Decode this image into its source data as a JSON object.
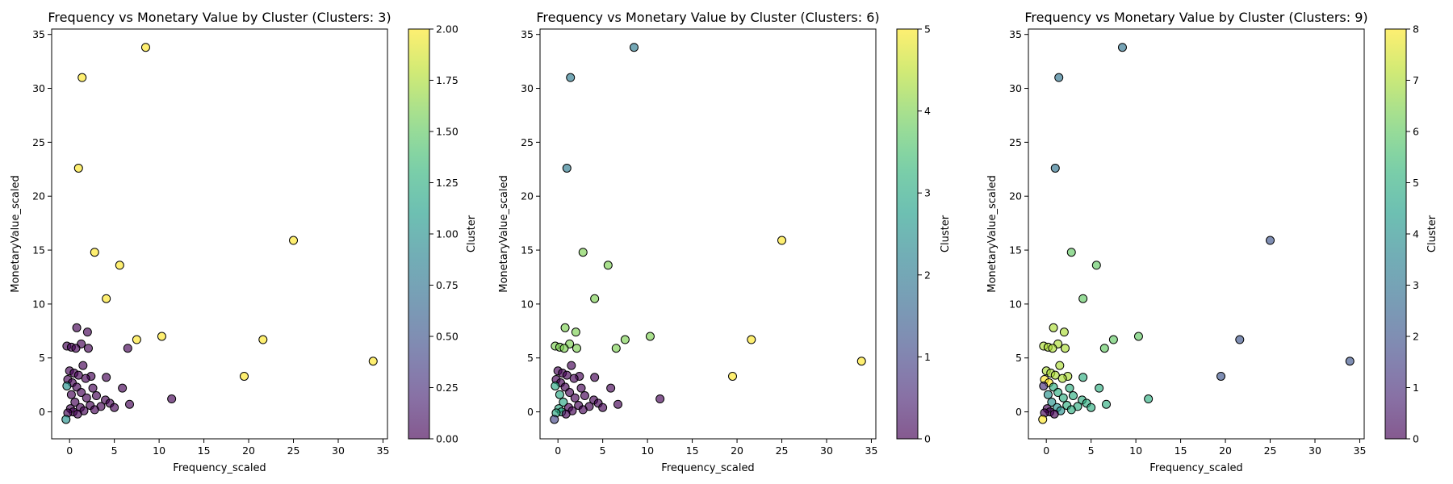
{
  "chart_data": [
    {
      "type": "scatter",
      "title": "Frequency vs Monetary Value by Cluster (Clusters: 3)",
      "xlabel": "Frequency_scaled",
      "ylabel": "MonetaryValue_scaled",
      "xlim": [
        -2.0,
        35.5
      ],
      "ylim": [
        -2.5,
        35.5
      ],
      "xticks": [
        0,
        5,
        10,
        15,
        20,
        25,
        30,
        35
      ],
      "yticks": [
        0,
        5,
        10,
        15,
        20,
        25,
        30,
        35
      ],
      "grid": false,
      "colorbar": {
        "label": "Cluster",
        "min": 0,
        "max": 2,
        "colormap": "viridis",
        "tick_values": [
          0,
          0.25,
          0.5,
          0.75,
          1,
          1.25,
          1.5,
          1.75,
          2
        ],
        "tick_labels": [
          "0.00",
          "0.25",
          "0.50",
          "0.75",
          "1.00",
          "1.25",
          "1.50",
          "1.75",
          "2.00"
        ]
      },
      "points": [
        {
          "x": 8.5,
          "y": 33.8,
          "c": 2
        },
        {
          "x": 1.4,
          "y": 31.0,
          "c": 2
        },
        {
          "x": 1.0,
          "y": 22.6,
          "c": 2
        },
        {
          "x": 25.0,
          "y": 15.9,
          "c": 2
        },
        {
          "x": 2.8,
          "y": 14.8,
          "c": 2
        },
        {
          "x": 5.6,
          "y": 13.6,
          "c": 2
        },
        {
          "x": 4.1,
          "y": 10.5,
          "c": 2
        },
        {
          "x": 10.3,
          "y": 7.0,
          "c": 2
        },
        {
          "x": 7.5,
          "y": 6.7,
          "c": 2
        },
        {
          "x": 21.6,
          "y": 6.7,
          "c": 2
        },
        {
          "x": 33.9,
          "y": 4.7,
          "c": 2
        },
        {
          "x": 19.5,
          "y": 3.3,
          "c": 2
        },
        {
          "x": 0.8,
          "y": 7.8,
          "c": 0
        },
        {
          "x": 2.0,
          "y": 7.4,
          "c": 0
        },
        {
          "x": 1.3,
          "y": 6.3,
          "c": 0
        },
        {
          "x": -0.3,
          "y": 6.1,
          "c": 0
        },
        {
          "x": 0.2,
          "y": 6.0,
          "c": 0
        },
        {
          "x": 0.7,
          "y": 5.9,
          "c": 0
        },
        {
          "x": 2.1,
          "y": 5.9,
          "c": 0
        },
        {
          "x": 6.5,
          "y": 5.9,
          "c": 0
        },
        {
          "x": 1.5,
          "y": 4.3,
          "c": 0
        },
        {
          "x": 0.0,
          "y": 3.8,
          "c": 0
        },
        {
          "x": 0.5,
          "y": 3.6,
          "c": 0
        },
        {
          "x": 1.0,
          "y": 3.4,
          "c": 0
        },
        {
          "x": 2.4,
          "y": 3.3,
          "c": 0
        },
        {
          "x": 1.8,
          "y": 3.1,
          "c": 0
        },
        {
          "x": 4.1,
          "y": 3.2,
          "c": 0
        },
        {
          "x": -0.2,
          "y": 3.0,
          "c": 0
        },
        {
          "x": 0.3,
          "y": 2.7,
          "c": 0
        },
        {
          "x": -0.3,
          "y": 2.4,
          "c": 1
        },
        {
          "x": 0.8,
          "y": 2.3,
          "c": 0
        },
        {
          "x": 2.6,
          "y": 2.2,
          "c": 0
        },
        {
          "x": 5.9,
          "y": 2.2,
          "c": 0
        },
        {
          "x": 1.3,
          "y": 1.8,
          "c": 0
        },
        {
          "x": 0.2,
          "y": 1.6,
          "c": 0
        },
        {
          "x": 3.0,
          "y": 1.5,
          "c": 0
        },
        {
          "x": 1.9,
          "y": 1.3,
          "c": 0
        },
        {
          "x": 11.4,
          "y": 1.2,
          "c": 0
        },
        {
          "x": 4.0,
          "y": 1.1,
          "c": 0
        },
        {
          "x": 4.5,
          "y": 0.8,
          "c": 0
        },
        {
          "x": 6.7,
          "y": 0.7,
          "c": 0
        },
        {
          "x": 0.6,
          "y": 0.9,
          "c": 0
        },
        {
          "x": 2.3,
          "y": 0.6,
          "c": 0
        },
        {
          "x": 3.5,
          "y": 0.5,
          "c": 0
        },
        {
          "x": 5.0,
          "y": 0.4,
          "c": 0
        },
        {
          "x": 1.2,
          "y": 0.4,
          "c": 0
        },
        {
          "x": 0.1,
          "y": 0.3,
          "c": 0
        },
        {
          "x": 2.8,
          "y": 0.2,
          "c": 0
        },
        {
          "x": 1.6,
          "y": 0.1,
          "c": 0
        },
        {
          "x": 0.4,
          "y": 0.0,
          "c": 0
        },
        {
          "x": -0.2,
          "y": -0.1,
          "c": 0
        },
        {
          "x": 0.9,
          "y": -0.2,
          "c": 0
        },
        {
          "x": -0.4,
          "y": -0.7,
          "c": 1
        }
      ]
    },
    {
      "type": "scatter",
      "title": "Frequency vs Monetary Value by Cluster (Clusters: 6)",
      "xlabel": "Frequency_scaled",
      "ylabel": "MonetaryValue_scaled",
      "xlim": [
        -2.0,
        35.5
      ],
      "ylim": [
        -2.5,
        35.5
      ],
      "xticks": [
        0,
        5,
        10,
        15,
        20,
        25,
        30,
        35
      ],
      "yticks": [
        0,
        5,
        10,
        15,
        20,
        25,
        30,
        35
      ],
      "grid": false,
      "colorbar": {
        "label": "Cluster",
        "min": 0,
        "max": 5,
        "colormap": "viridis",
        "tick_values": [
          0,
          1,
          2,
          3,
          4,
          5
        ],
        "tick_labels": [
          "0",
          "1",
          "2",
          "3",
          "4",
          "5"
        ]
      },
      "points": [
        {
          "x": 8.5,
          "y": 33.8,
          "c": 2
        },
        {
          "x": 1.4,
          "y": 31.0,
          "c": 2
        },
        {
          "x": 1.0,
          "y": 22.6,
          "c": 2
        },
        {
          "x": 25.0,
          "y": 15.9,
          "c": 5
        },
        {
          "x": 2.8,
          "y": 14.8,
          "c": 4
        },
        {
          "x": 5.6,
          "y": 13.6,
          "c": 4
        },
        {
          "x": 4.1,
          "y": 10.5,
          "c": 4
        },
        {
          "x": 10.3,
          "y": 7.0,
          "c": 4
        },
        {
          "x": 7.5,
          "y": 6.7,
          "c": 4
        },
        {
          "x": 21.6,
          "y": 6.7,
          "c": 5
        },
        {
          "x": 33.9,
          "y": 4.7,
          "c": 5
        },
        {
          "x": 19.5,
          "y": 3.3,
          "c": 5
        },
        {
          "x": 0.8,
          "y": 7.8,
          "c": 4
        },
        {
          "x": 2.0,
          "y": 7.4,
          "c": 4
        },
        {
          "x": 1.3,
          "y": 6.3,
          "c": 4
        },
        {
          "x": -0.3,
          "y": 6.1,
          "c": 4
        },
        {
          "x": 0.2,
          "y": 6.0,
          "c": 4
        },
        {
          "x": 0.7,
          "y": 5.9,
          "c": 4
        },
        {
          "x": 2.1,
          "y": 5.9,
          "c": 4
        },
        {
          "x": 6.5,
          "y": 5.9,
          "c": 4
        },
        {
          "x": 1.5,
          "y": 4.3,
          "c": 0
        },
        {
          "x": 0.0,
          "y": 3.8,
          "c": 0
        },
        {
          "x": 0.5,
          "y": 3.6,
          "c": 0
        },
        {
          "x": 1.0,
          "y": 3.4,
          "c": 0
        },
        {
          "x": 2.4,
          "y": 3.3,
          "c": 0
        },
        {
          "x": 1.8,
          "y": 3.1,
          "c": 0
        },
        {
          "x": 4.1,
          "y": 3.2,
          "c": 0
        },
        {
          "x": -0.2,
          "y": 3.0,
          "c": 0
        },
        {
          "x": 0.3,
          "y": 2.7,
          "c": 0
        },
        {
          "x": -0.3,
          "y": 2.4,
          "c": 3
        },
        {
          "x": 0.8,
          "y": 2.3,
          "c": 0
        },
        {
          "x": 2.6,
          "y": 2.2,
          "c": 0
        },
        {
          "x": 5.9,
          "y": 2.2,
          "c": 0
        },
        {
          "x": 1.3,
          "y": 1.8,
          "c": 0
        },
        {
          "x": 0.2,
          "y": 1.6,
          "c": 3
        },
        {
          "x": 3.0,
          "y": 1.5,
          "c": 0
        },
        {
          "x": 1.9,
          "y": 1.3,
          "c": 0
        },
        {
          "x": 11.4,
          "y": 1.2,
          "c": 0
        },
        {
          "x": 4.0,
          "y": 1.1,
          "c": 0
        },
        {
          "x": 4.5,
          "y": 0.8,
          "c": 0
        },
        {
          "x": 6.7,
          "y": 0.7,
          "c": 0
        },
        {
          "x": 0.6,
          "y": 0.9,
          "c": 3
        },
        {
          "x": 2.3,
          "y": 0.6,
          "c": 0
        },
        {
          "x": 3.5,
          "y": 0.5,
          "c": 0
        },
        {
          "x": 5.0,
          "y": 0.4,
          "c": 0
        },
        {
          "x": 1.2,
          "y": 0.4,
          "c": 0
        },
        {
          "x": 0.1,
          "y": 0.3,
          "c": 3
        },
        {
          "x": 2.8,
          "y": 0.2,
          "c": 0
        },
        {
          "x": 1.6,
          "y": 0.1,
          "c": 0
        },
        {
          "x": 0.4,
          "y": 0.0,
          "c": 3
        },
        {
          "x": -0.2,
          "y": -0.1,
          "c": 3
        },
        {
          "x": 0.9,
          "y": -0.2,
          "c": 0
        },
        {
          "x": -0.4,
          "y": -0.7,
          "c": 1
        }
      ]
    },
    {
      "type": "scatter",
      "title": "Frequency vs Monetary Value by Cluster (Clusters: 9)",
      "xlabel": "Frequency_scaled",
      "ylabel": "MonetaryValue_scaled",
      "xlim": [
        -2.0,
        35.5
      ],
      "ylim": [
        -2.5,
        35.5
      ],
      "xticks": [
        0,
        5,
        10,
        15,
        20,
        25,
        30,
        35
      ],
      "yticks": [
        0,
        5,
        10,
        15,
        20,
        25,
        30,
        35
      ],
      "grid": false,
      "colorbar": {
        "label": "Cluster",
        "min": 0,
        "max": 8,
        "colormap": "viridis",
        "tick_values": [
          0,
          1,
          2,
          3,
          4,
          5,
          6,
          7,
          8
        ],
        "tick_labels": [
          "0",
          "1",
          "2",
          "3",
          "4",
          "5",
          "6",
          "7",
          "8"
        ]
      },
      "points": [
        {
          "x": 8.5,
          "y": 33.8,
          "c": 3
        },
        {
          "x": 1.4,
          "y": 31.0,
          "c": 3
        },
        {
          "x": 1.0,
          "y": 22.6,
          "c": 3
        },
        {
          "x": 25.0,
          "y": 15.9,
          "c": 2
        },
        {
          "x": 2.8,
          "y": 14.8,
          "c": 6
        },
        {
          "x": 5.6,
          "y": 13.6,
          "c": 6
        },
        {
          "x": 4.1,
          "y": 10.5,
          "c": 6
        },
        {
          "x": 10.3,
          "y": 7.0,
          "c": 6
        },
        {
          "x": 7.5,
          "y": 6.7,
          "c": 6
        },
        {
          "x": 21.6,
          "y": 6.7,
          "c": 2
        },
        {
          "x": 33.9,
          "y": 4.7,
          "c": 2
        },
        {
          "x": 19.5,
          "y": 3.3,
          "c": 2
        },
        {
          "x": 0.8,
          "y": 7.8,
          "c": 7
        },
        {
          "x": 2.0,
          "y": 7.4,
          "c": 7
        },
        {
          "x": 1.3,
          "y": 6.3,
          "c": 7
        },
        {
          "x": -0.3,
          "y": 6.1,
          "c": 7
        },
        {
          "x": 0.2,
          "y": 6.0,
          "c": 7
        },
        {
          "x": 0.7,
          "y": 5.9,
          "c": 7
        },
        {
          "x": 2.1,
          "y": 5.9,
          "c": 7
        },
        {
          "x": 6.5,
          "y": 5.9,
          "c": 6
        },
        {
          "x": 1.5,
          "y": 4.3,
          "c": 7
        },
        {
          "x": 0.0,
          "y": 3.8,
          "c": 7
        },
        {
          "x": 0.5,
          "y": 3.6,
          "c": 7
        },
        {
          "x": 1.0,
          "y": 3.4,
          "c": 7
        },
        {
          "x": 2.4,
          "y": 3.3,
          "c": 7
        },
        {
          "x": 1.8,
          "y": 3.1,
          "c": 7
        },
        {
          "x": 4.1,
          "y": 3.2,
          "c": 5
        },
        {
          "x": -0.2,
          "y": 3.0,
          "c": 8
        },
        {
          "x": 0.3,
          "y": 2.7,
          "c": 8
        },
        {
          "x": -0.3,
          "y": 2.4,
          "c": 1
        },
        {
          "x": 0.8,
          "y": 2.3,
          "c": 5
        },
        {
          "x": 2.6,
          "y": 2.2,
          "c": 5
        },
        {
          "x": 5.9,
          "y": 2.2,
          "c": 5
        },
        {
          "x": 1.3,
          "y": 1.8,
          "c": 5
        },
        {
          "x": 0.2,
          "y": 1.6,
          "c": 4
        },
        {
          "x": 3.0,
          "y": 1.5,
          "c": 5
        },
        {
          "x": 1.9,
          "y": 1.3,
          "c": 5
        },
        {
          "x": 11.4,
          "y": 1.2,
          "c": 5
        },
        {
          "x": 4.0,
          "y": 1.1,
          "c": 5
        },
        {
          "x": 4.5,
          "y": 0.8,
          "c": 5
        },
        {
          "x": 6.7,
          "y": 0.7,
          "c": 5
        },
        {
          "x": 0.6,
          "y": 0.9,
          "c": 4
        },
        {
          "x": 2.3,
          "y": 0.6,
          "c": 5
        },
        {
          "x": 3.5,
          "y": 0.5,
          "c": 5
        },
        {
          "x": 5.0,
          "y": 0.4,
          "c": 5
        },
        {
          "x": 1.2,
          "y": 0.4,
          "c": 4
        },
        {
          "x": 0.1,
          "y": 0.3,
          "c": 0
        },
        {
          "x": 2.8,
          "y": 0.2,
          "c": 5
        },
        {
          "x": 1.6,
          "y": 0.1,
          "c": 4
        },
        {
          "x": 0.4,
          "y": 0.0,
          "c": 0
        },
        {
          "x": -0.2,
          "y": -0.1,
          "c": 0
        },
        {
          "x": 0.9,
          "y": -0.2,
          "c": 0
        },
        {
          "x": -0.4,
          "y": -0.7,
          "c": 8
        }
      ]
    }
  ]
}
